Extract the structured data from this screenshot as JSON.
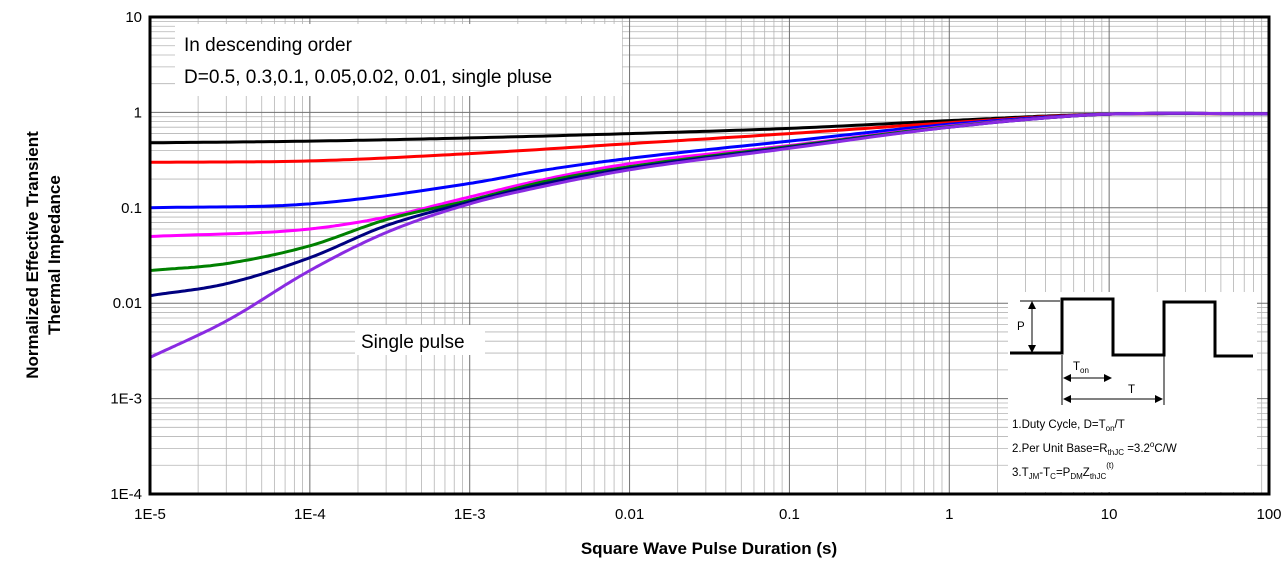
{
  "chart_data": {
    "type": "line",
    "xlabel": "Square Wave Pulse Duration (s)",
    "ylabel_lines": [
      "Normalized Effective Transient",
      "Thermal Impedance"
    ],
    "x_scale": "log",
    "y_scale": "log",
    "xlim": [
      1e-05,
      100
    ],
    "ylim": [
      0.0001,
      10
    ],
    "x_ticks": [
      {
        "value": 1e-05,
        "label": "1E-5"
      },
      {
        "value": 0.0001,
        "label": "1E-4"
      },
      {
        "value": 0.001,
        "label": "1E-3"
      },
      {
        "value": 0.01,
        "label": "0.01"
      },
      {
        "value": 0.1,
        "label": "0.1"
      },
      {
        "value": 1,
        "label": "1"
      },
      {
        "value": 10,
        "label": "10"
      },
      {
        "value": 100,
        "label": "100"
      }
    ],
    "y_ticks": [
      {
        "value": 0.0001,
        "label": "1E-4"
      },
      {
        "value": 0.001,
        "label": "1E-3"
      },
      {
        "value": 0.01,
        "label": "0.01"
      },
      {
        "value": 0.1,
        "label": "0.1"
      },
      {
        "value": 1,
        "label": "1"
      },
      {
        "value": 10,
        "label": "10"
      }
    ],
    "grid": true,
    "annotations": {
      "legend_line1": "In descending order",
      "legend_line2": "D=0.5, 0.3,0.1, 0.05,0.02, 0.01, single pluse",
      "single_pulse_label": "Single pulse"
    },
    "series": [
      {
        "color": "#000000",
        "x": [
          1e-05,
          0.0001,
          0.001,
          0.01,
          0.1,
          1,
          5,
          10,
          100
        ],
        "y": [
          0.48,
          0.5,
          0.54,
          0.6,
          0.68,
          0.82,
          0.93,
          0.96,
          0.97
        ]
      },
      {
        "color": "#ff0000",
        "x": [
          1e-05,
          0.0001,
          0.001,
          0.01,
          0.1,
          1,
          5,
          10,
          100
        ],
        "y": [
          0.3,
          0.31,
          0.37,
          0.47,
          0.6,
          0.78,
          0.92,
          0.96,
          0.97
        ]
      },
      {
        "color": "#0000ff",
        "x": [
          1e-05,
          0.0001,
          0.001,
          0.003,
          0.01,
          0.1,
          1,
          5,
          10,
          100
        ],
        "y": [
          0.1,
          0.11,
          0.18,
          0.25,
          0.33,
          0.5,
          0.75,
          0.91,
          0.96,
          0.97
        ]
      },
      {
        "color": "#ff00ff",
        "x": [
          1e-05,
          0.0001,
          0.0003,
          0.001,
          0.003,
          0.01,
          0.1,
          1,
          5,
          10,
          100
        ],
        "y": [
          0.05,
          0.06,
          0.08,
          0.13,
          0.2,
          0.29,
          0.45,
          0.72,
          0.9,
          0.96,
          0.97
        ]
      },
      {
        "color": "#008000",
        "x": [
          1e-05,
          3e-05,
          0.0001,
          0.0003,
          0.001,
          0.003,
          0.01,
          0.1,
          1,
          5,
          10,
          100
        ],
        "y": [
          0.022,
          0.026,
          0.04,
          0.075,
          0.12,
          0.19,
          0.27,
          0.44,
          0.71,
          0.9,
          0.96,
          0.97
        ]
      },
      {
        "color": "#000080",
        "x": [
          1e-05,
          3e-05,
          0.0001,
          0.0003,
          0.001,
          0.003,
          0.01,
          0.1,
          1,
          5,
          10,
          100
        ],
        "y": [
          0.012,
          0.016,
          0.03,
          0.065,
          0.115,
          0.18,
          0.26,
          0.43,
          0.7,
          0.9,
          0.96,
          0.97
        ]
      },
      {
        "color": "#8a2be2",
        "name": "Single pulse",
        "x": [
          1e-05,
          3e-05,
          0.0001,
          0.0003,
          0.001,
          0.003,
          0.01,
          0.1,
          1,
          5,
          10,
          100
        ],
        "y": [
          0.0027,
          0.0065,
          0.022,
          0.055,
          0.11,
          0.17,
          0.25,
          0.42,
          0.7,
          0.9,
          0.96,
          0.97
        ]
      }
    ],
    "inset": {
      "p_label": "P",
      "ton_label": "T",
      "ton_sub": "on",
      "t_label": "T",
      "note1_a": "1.Duty Cycle, D=T",
      "note1_sub": "on",
      "note1_b": "/T",
      "note2_a": "2.Per Unit Base=R",
      "note2_sub": "thJC",
      "note2_b": " =3.2",
      "note2_sup": "o",
      "note2_c": "C/W",
      "note3_a": "3.T",
      "note3_sub1": "JM",
      "note3_b": "-T",
      "note3_sub2": "C",
      "note3_c": "=P",
      "note3_sub3": "DM",
      "note3_d": "Z",
      "note3_sub4": "thJC",
      "note3_sup": "(t)"
    }
  }
}
